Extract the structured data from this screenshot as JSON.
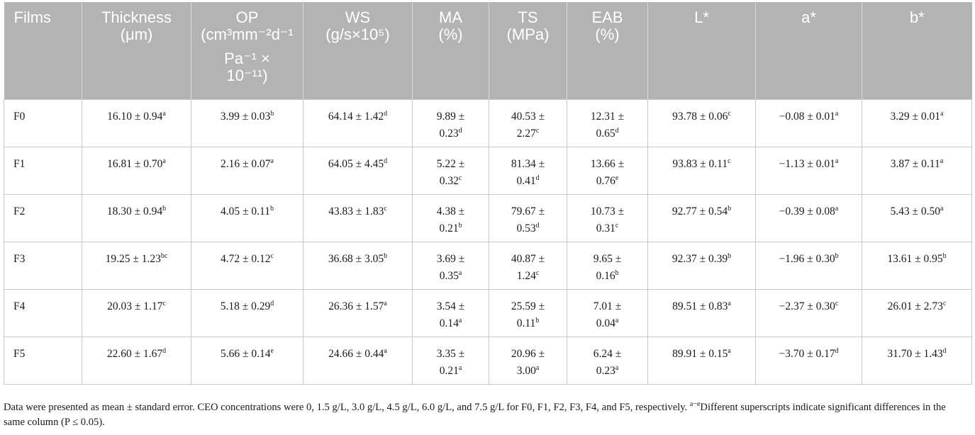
{
  "table": {
    "headers": [
      {
        "key": "films",
        "label": "Films",
        "unit": ""
      },
      {
        "key": "thickness",
        "label": "Thickness",
        "unit": "(μm)"
      },
      {
        "key": "op",
        "label": "OP",
        "unit_lines": [
          "(cm³mm⁻²d⁻¹",
          "Pa⁻¹ ×",
          "10⁻¹¹)"
        ]
      },
      {
        "key": "ws",
        "label": "WS",
        "unit": "(g/s×10⁵)"
      },
      {
        "key": "ma",
        "label": "MA",
        "unit": "(%)"
      },
      {
        "key": "ts",
        "label": "TS",
        "unit": "(MPa)"
      },
      {
        "key": "eab",
        "label": "EAB",
        "unit": "(%)"
      },
      {
        "key": "l",
        "label": "L*",
        "unit": ""
      },
      {
        "key": "a",
        "label": "a*",
        "unit": ""
      },
      {
        "key": "b",
        "label": "b*",
        "unit": ""
      }
    ],
    "rows": [
      {
        "film": "F0",
        "cells": [
          {
            "v": "16.10 ± 0.94",
            "s": "a"
          },
          {
            "v": "3.99 ± 0.03",
            "s": "b"
          },
          {
            "v": "64.14 ± 1.42",
            "s": "d"
          },
          {
            "v": "9.89 ± 0.23",
            "s": "d"
          },
          {
            "v": "40.53 ± 2.27",
            "s": "c"
          },
          {
            "v": "12.31 ± 0.65",
            "s": "d"
          },
          {
            "v": "93.78 ± 0.06",
            "s": "c"
          },
          {
            "v": "−0.08 ± 0.01",
            "s": "a"
          },
          {
            "v": "3.29 ± 0.01",
            "s": "a"
          }
        ]
      },
      {
        "film": "F1",
        "cells": [
          {
            "v": "16.81 ± 0.70",
            "s": "a"
          },
          {
            "v": "2.16 ± 0.07",
            "s": "a"
          },
          {
            "v": "64.05 ± 4.45",
            "s": "d"
          },
          {
            "v": "5.22 ± 0.32",
            "s": "c"
          },
          {
            "v": "81.34 ± 0.41",
            "s": "d"
          },
          {
            "v": "13.66 ± 0.76",
            "s": "e"
          },
          {
            "v": "93.83 ± 0.11",
            "s": "c"
          },
          {
            "v": "−1.13 ± 0.01",
            "s": "a"
          },
          {
            "v": "3.87 ± 0.11",
            "s": "a"
          }
        ]
      },
      {
        "film": "F2",
        "cells": [
          {
            "v": "18.30 ± 0.94",
            "s": "b"
          },
          {
            "v": "4.05 ± 0.11",
            "s": "b"
          },
          {
            "v": "43.83 ± 1.83",
            "s": "c"
          },
          {
            "v": "4.38 ± 0.21",
            "s": "b"
          },
          {
            "v": "79.67 ± 0.53",
            "s": "d"
          },
          {
            "v": "10.73 ± 0.31",
            "s": "c"
          },
          {
            "v": "92.77 ± 0.54",
            "s": "b"
          },
          {
            "v": "−0.39 ± 0.08",
            "s": "a"
          },
          {
            "v": "5.43 ± 0.50",
            "s": "a"
          }
        ]
      },
      {
        "film": "F3",
        "cells": [
          {
            "v": "19.25 ± 1.23",
            "s": "bc"
          },
          {
            "v": "4.72 ± 0.12",
            "s": "c"
          },
          {
            "v": "36.68 ± 3.05",
            "s": "b"
          },
          {
            "v": "3.69 ± 0.35",
            "s": "a"
          },
          {
            "v": "40.87 ± 1.24",
            "s": "c"
          },
          {
            "v": "9.65 ± 0.16",
            "s": "b"
          },
          {
            "v": "92.37 ± 0.39",
            "s": "b"
          },
          {
            "v": "−1.96 ± 0.30",
            "s": "b"
          },
          {
            "v": "13.61 ± 0.95",
            "s": "b"
          }
        ]
      },
      {
        "film": "F4",
        "cells": [
          {
            "v": "20.03 ± 1.17",
            "s": "c"
          },
          {
            "v": "5.18 ± 0.29",
            "s": "d"
          },
          {
            "v": "26.36 ± 1.57",
            "s": "a"
          },
          {
            "v": "3.54 ± 0.14",
            "s": "a"
          },
          {
            "v": "25.59 ± 0.11",
            "s": "b"
          },
          {
            "v": "7.01 ± 0.04",
            "s": "a"
          },
          {
            "v": "89.51 ± 0.83",
            "s": "a"
          },
          {
            "v": "−2.37 ± 0.30",
            "s": "c"
          },
          {
            "v": "26.01 ± 2.73",
            "s": "c"
          }
        ]
      },
      {
        "film": "F5",
        "cells": [
          {
            "v": "22.60 ± 1.67",
            "s": "d"
          },
          {
            "v": "5.66 ± 0.14",
            "s": "e"
          },
          {
            "v": "24.66 ± 0.44",
            "s": "a"
          },
          {
            "v": "3.35 ± 0.21",
            "s": "a"
          },
          {
            "v": "20.96 ± 3.00",
            "s": "a"
          },
          {
            "v": "6.24 ± 0.23",
            "s": "a"
          },
          {
            "v": "89.91 ± 0.15",
            "s": "a"
          },
          {
            "v": "−3.70 ± 0.17",
            "s": "d"
          },
          {
            "v": "31.70 ± 1.43",
            "s": "d"
          }
        ]
      }
    ]
  },
  "footnote": {
    "main": "Data were presented as mean ± standard error. CEO concentrations were 0, 1.5 g/L, 3.0 g/L, 4.5 g/L, 6.0 g/L, and 7.5 g/L for F0, F1, F2, F3, F4, and F5, respectively. ",
    "sup": "a−e",
    "tail": "Different superscripts indicate significant differences in the same column (P ≤ 0.05)."
  },
  "colors": {
    "header_bg": "#b3b3b3",
    "header_text": "#ffffff",
    "grid": "#c8c8c8"
  }
}
